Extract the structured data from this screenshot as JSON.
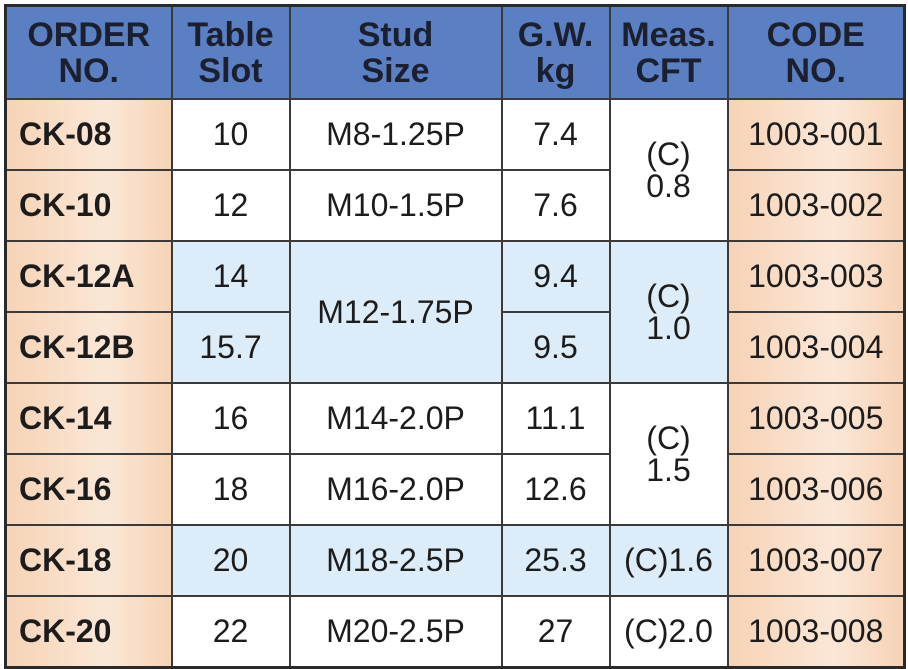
{
  "table": {
    "header": [
      [
        "ORDER",
        "NO."
      ],
      [
        "Table",
        "Slot"
      ],
      [
        "Stud",
        "Size"
      ],
      [
        "G.W.",
        "kg"
      ],
      [
        "Meas.",
        "CFT"
      ],
      [
        "CODE",
        "NO."
      ]
    ],
    "rows": [
      [
        "CK-08",
        "10",
        "M8-1.25P",
        "7.4",
        [
          "(C)",
          "0.8"
        ],
        "1003-001"
      ],
      [
        "CK-10",
        "12",
        "M10-1.5P",
        "7.6",
        "1003-002"
      ],
      [
        "CK-12A",
        "14",
        "M12-1.75P",
        "9.4",
        [
          "(C)",
          "1.0"
        ],
        "1003-003"
      ],
      [
        "CK-12B",
        "15.7",
        "9.5",
        "1003-004"
      ],
      [
        "CK-14",
        "16",
        "M14-2.0P",
        "11.1",
        [
          "(C)",
          "1.5"
        ],
        "1003-005"
      ],
      [
        "CK-16",
        "18",
        "M16-2.0P",
        "12.6",
        "1003-006"
      ],
      [
        "CK-18",
        "20",
        "M18-2.5P",
        "25.3",
        "(C)1.6",
        "1003-007"
      ],
      [
        "CK-20",
        "22",
        "M20-2.5P",
        "27",
        "(C)2.0",
        "1003-008"
      ]
    ]
  }
}
